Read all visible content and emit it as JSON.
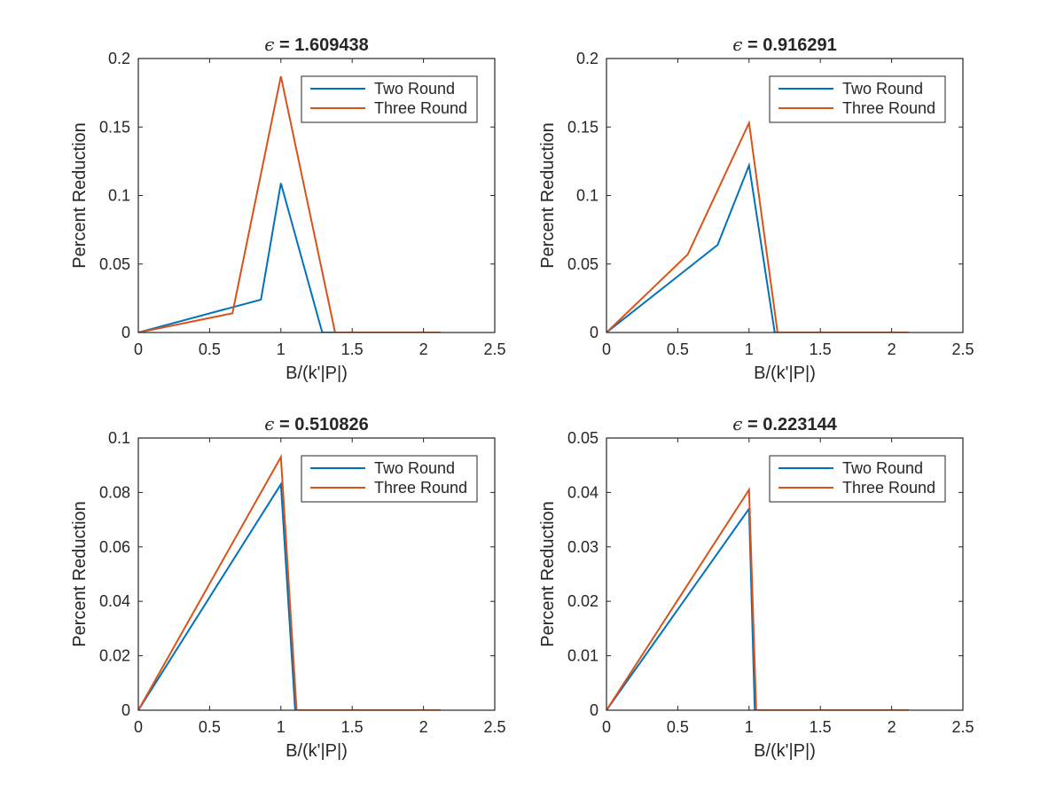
{
  "colors": {
    "two_round": "#0072bd",
    "three_round": "#d95319",
    "axis": "#262626",
    "background": "#ffffff"
  },
  "chart_data": [
    {
      "type": "line",
      "title_symbol": "ϵ",
      "title_text": " = 1.609438",
      "xlabel": "B/(k'|P|)",
      "ylabel": "Percent Reduction",
      "xlim": [
        0,
        2.5
      ],
      "ylim": [
        0,
        0.2
      ],
      "xticks": [
        0,
        0.5,
        1,
        1.5,
        2,
        2.5
      ],
      "xtick_labels": [
        "0",
        "0.5",
        "1",
        "1.5",
        "2",
        "2.5"
      ],
      "yticks": [
        0,
        0.05,
        0.1,
        0.15,
        0.2
      ],
      "ytick_labels": [
        "0",
        "0.05",
        "0.1",
        "0.15",
        "0.2"
      ],
      "legend_position": "top-right",
      "grid": false,
      "series": [
        {
          "name": "Two Round",
          "x": [
            0,
            0.86,
            1.0,
            1.29,
            2.12
          ],
          "y": [
            0,
            0.024,
            0.109,
            0,
            0
          ]
        },
        {
          "name": "Three Round",
          "x": [
            0,
            0.66,
            1.0,
            1.38,
            2.12
          ],
          "y": [
            0,
            0.014,
            0.187,
            0,
            0
          ]
        }
      ]
    },
    {
      "type": "line",
      "title_symbol": "ϵ",
      "title_text": " = 0.916291",
      "xlabel": "B/(k'|P|)",
      "ylabel": "Percent Reduction",
      "xlim": [
        0,
        2.5
      ],
      "ylim": [
        0,
        0.2
      ],
      "xticks": [
        0,
        0.5,
        1,
        1.5,
        2,
        2.5
      ],
      "xtick_labels": [
        "0",
        "0.5",
        "1",
        "1.5",
        "2",
        "2.5"
      ],
      "yticks": [
        0,
        0.05,
        0.1,
        0.15,
        0.2
      ],
      "ytick_labels": [
        "0",
        "0.05",
        "0.1",
        "0.15",
        "0.2"
      ],
      "legend_position": "top-right",
      "grid": false,
      "series": [
        {
          "name": "Two Round",
          "x": [
            0,
            0.78,
            1.0,
            1.18,
            2.12
          ],
          "y": [
            0,
            0.064,
            0.122,
            0,
            0
          ]
        },
        {
          "name": "Three Round",
          "x": [
            0,
            0.57,
            1.0,
            1.2,
            2.12
          ],
          "y": [
            0,
            0.057,
            0.153,
            0,
            0
          ]
        }
      ]
    },
    {
      "type": "line",
      "title_symbol": "ϵ",
      "title_text": " = 0.510826",
      "xlabel": "B/(k'|P|)",
      "ylabel": "Percent Reduction",
      "xlim": [
        0,
        2.5
      ],
      "ylim": [
        0,
        0.1
      ],
      "xticks": [
        0,
        0.5,
        1,
        1.5,
        2,
        2.5
      ],
      "xtick_labels": [
        "0",
        "0.5",
        "1",
        "1.5",
        "2",
        "2.5"
      ],
      "yticks": [
        0,
        0.02,
        0.04,
        0.06,
        0.08,
        0.1
      ],
      "ytick_labels": [
        "0",
        "0.02",
        "0.04",
        "0.06",
        "0.08",
        "0.1"
      ],
      "legend_position": "top-right",
      "grid": false,
      "series": [
        {
          "name": "Two Round",
          "x": [
            0,
            1.0,
            1.1,
            2.12
          ],
          "y": [
            0,
            0.083,
            0,
            0
          ]
        },
        {
          "name": "Three Round",
          "x": [
            0,
            1.0,
            1.11,
            2.12
          ],
          "y": [
            0,
            0.093,
            0,
            0
          ]
        }
      ]
    },
    {
      "type": "line",
      "title_symbol": "ϵ",
      "title_text": " = 0.223144",
      "xlabel": "B/(k'|P|)",
      "ylabel": "Percent Reduction",
      "xlim": [
        0,
        2.5
      ],
      "ylim": [
        0,
        0.05
      ],
      "xticks": [
        0,
        0.5,
        1,
        1.5,
        2,
        2.5
      ],
      "xtick_labels": [
        "0",
        "0.5",
        "1",
        "1.5",
        "2",
        "2.5"
      ],
      "yticks": [
        0,
        0.01,
        0.02,
        0.03,
        0.04,
        0.05
      ],
      "ytick_labels": [
        "0",
        "0.01",
        "0.02",
        "0.03",
        "0.04",
        "0.05"
      ],
      "legend_position": "top-right",
      "grid": false,
      "series": [
        {
          "name": "Two Round",
          "x": [
            0,
            1.0,
            1.04,
            2.12
          ],
          "y": [
            0,
            0.037,
            0,
            0
          ]
        },
        {
          "name": "Three Round",
          "x": [
            0,
            1.0,
            1.05,
            2.12
          ],
          "y": [
            0,
            0.0405,
            0,
            0
          ]
        }
      ]
    }
  ]
}
